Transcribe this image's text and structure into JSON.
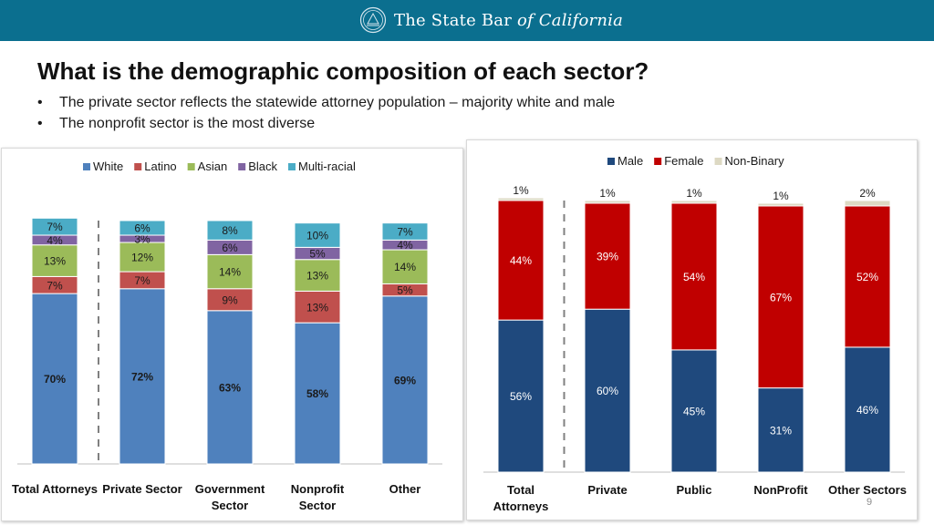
{
  "header": {
    "brand_prefix": "The State Bar",
    "brand_of": "of",
    "brand_name": "California",
    "logo_icon": "state-bar-seal-icon",
    "color": "#0b6f8f"
  },
  "title": "What is the demographic composition of each sector?",
  "bullets": [
    "The private sector reflects the statewide attorney population – majority white and male",
    "The nonprofit sector is the most diverse"
  ],
  "page_number": "9",
  "chart_data": [
    {
      "type": "bar",
      "stacked": true,
      "title": "",
      "xlabel": "",
      "ylabel": "",
      "ylim": [
        0,
        100
      ],
      "legend_position": "top",
      "categories": [
        "Total Attorneys",
        "Private Sector",
        "Government Sector",
        "Nonprofit Sector",
        "Other"
      ],
      "category_lines": [
        [
          "Total Attorneys"
        ],
        [
          "Private Sector"
        ],
        [
          "Government",
          "Sector"
        ],
        [
          "Nonprofit",
          "Sector"
        ],
        [
          "Other"
        ]
      ],
      "series": [
        {
          "name": "White",
          "color": "#4f81bd",
          "values": [
            70,
            72,
            63,
            58,
            69
          ]
        },
        {
          "name": "Latino",
          "color": "#c0504d",
          "values": [
            7,
            7,
            9,
            13,
            5
          ]
        },
        {
          "name": "Asian",
          "color": "#9bbb59",
          "values": [
            13,
            12,
            14,
            13,
            14
          ]
        },
        {
          "name": "Black",
          "color": "#8064a2",
          "values": [
            4,
            3,
            6,
            5,
            4
          ]
        },
        {
          "name": "Multi-racial",
          "color": "#4bacc6",
          "values": [
            7,
            6,
            8,
            10,
            7
          ]
        }
      ]
    },
    {
      "type": "bar",
      "stacked": true,
      "title": "",
      "xlabel": "",
      "ylabel": "",
      "ylim": [
        0,
        100
      ],
      "legend_position": "top",
      "categories": [
        "Total Attorneys",
        "Private",
        "Public",
        "NonProfit",
        "Other Sectors"
      ],
      "category_lines": [
        [
          "Total",
          "Attorneys"
        ],
        [
          "Private"
        ],
        [
          "Public"
        ],
        [
          "NonProfit"
        ],
        [
          "Other Sectors"
        ]
      ],
      "series": [
        {
          "name": "Male",
          "color": "#1f497d",
          "values": [
            56,
            60,
            45,
            31,
            46
          ]
        },
        {
          "name": "Female",
          "color": "#c00000",
          "values": [
            44,
            39,
            54,
            67,
            52
          ]
        },
        {
          "name": "Non-Binary",
          "color": "#ddd9c3",
          "values": [
            1,
            1,
            1,
            1,
            2
          ]
        }
      ]
    }
  ]
}
